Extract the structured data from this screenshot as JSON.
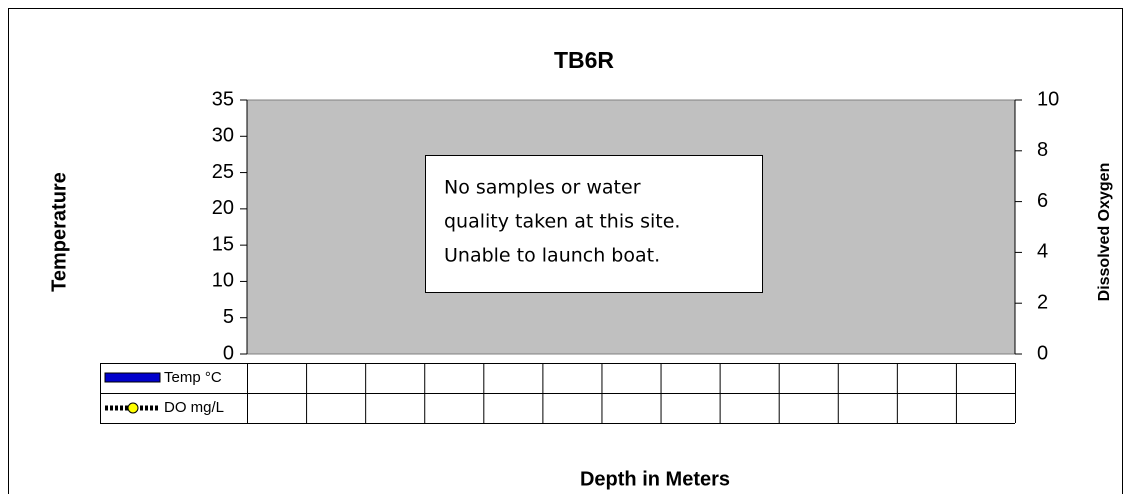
{
  "chart_data": {
    "type": "bar",
    "title": "TB6R",
    "x_label": "Depth in Meters",
    "y_label": "Temperature",
    "y2_label": "Dissolved Oxygen",
    "annotation": [
      "No samples or water",
      "quality taken at this site.",
      "Unable to launch boat."
    ],
    "categories": [
      null,
      null,
      null,
      null,
      null,
      null,
      null,
      null,
      null,
      null,
      null,
      null,
      null
    ],
    "series": [
      {
        "name": "Temp °C",
        "type": "bar",
        "color": "#0000cc",
        "values": [
          null,
          null,
          null,
          null,
          null,
          null,
          null,
          null,
          null,
          null,
          null,
          null,
          null
        ]
      },
      {
        "name": "DO mg/L",
        "type": "line",
        "axis": "y2",
        "color": "#ffff00",
        "values": [
          null,
          null,
          null,
          null,
          null,
          null,
          null,
          null,
          null,
          null,
          null,
          null,
          null
        ]
      }
    ],
    "ylim": [
      0,
      35
    ],
    "yticks": [
      0,
      5,
      10,
      15,
      20,
      25,
      30,
      35
    ],
    "y2lim": [
      0,
      10
    ],
    "y2ticks": [
      0,
      2,
      4,
      6,
      8,
      10
    ],
    "plot_background": "#c0c0c0",
    "grid": false,
    "legend": "data-table"
  }
}
